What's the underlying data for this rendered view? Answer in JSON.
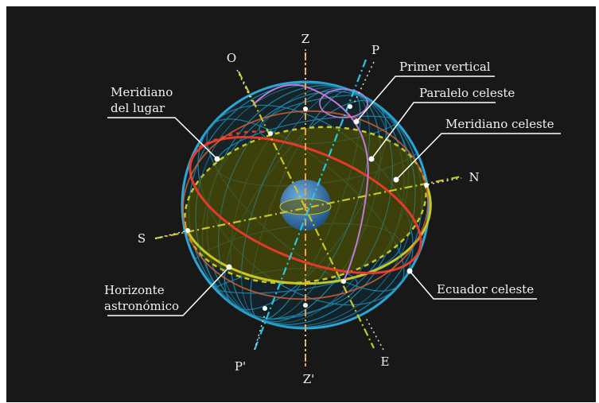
{
  "labels": {
    "z": "Z",
    "z_prime": "Z'",
    "p": "P",
    "p_prime": "P'",
    "o": "O",
    "e": "E",
    "n": "N",
    "s": "S",
    "meridiano_lugar_1": "Meridiano",
    "meridiano_lugar_2": "del lugar",
    "primer_vertical": "Primer vertical",
    "paralelo_celeste": "Paralelo celeste",
    "meridiano_celeste": "Meridiano celeste",
    "horizonte_1": "Horizonte",
    "horizonte_2": "astronómico",
    "ecuador_celeste": "Ecuador celeste"
  },
  "colors": {
    "background": "#181818",
    "sphere_outline": "#2aa7d8",
    "grid": "#1f8fb8",
    "horizon_fill": "#4a4a00",
    "horizon_line": "#c8c820",
    "equator": "#e33a2a",
    "meridian_line": "#e87a30",
    "prime_vertical": "#c07ad8",
    "polar_axis": "#28c8e0",
    "zenith_axis": "#f0a040",
    "label_text": "#f2f2f2"
  }
}
